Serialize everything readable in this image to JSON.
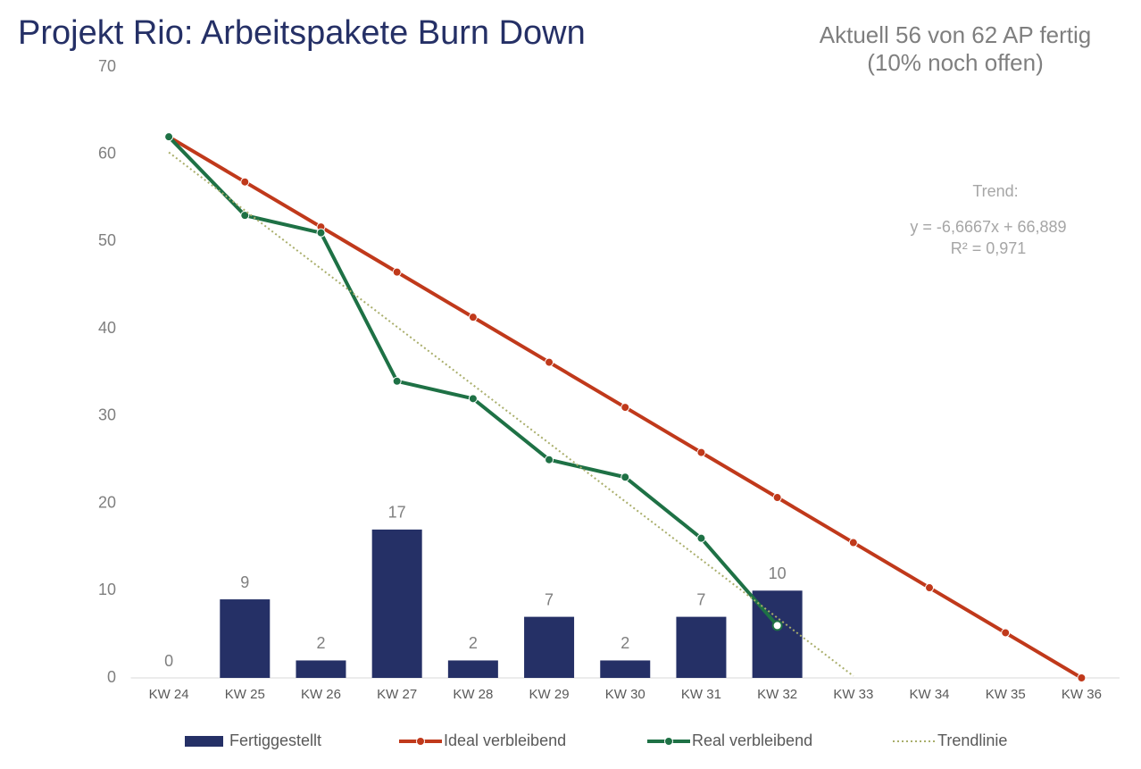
{
  "chart_data": {
    "type": "combo",
    "title": "Projekt Rio: Arbeitspakete Burn Down",
    "subtitle": [
      "Aktuell 56 von 62 AP fertig",
      "(10% noch offen)"
    ],
    "annotation": [
      "Trend:",
      "y = -6,6667x + 66,889",
      "R² = 0,971"
    ],
    "categories": [
      "KW 24",
      "KW 25",
      "KW 26",
      "KW 27",
      "KW 28",
      "KW 29",
      "KW 30",
      "KW 31",
      "KW 32",
      "KW 33",
      "KW 34",
      "KW 35",
      "KW 36"
    ],
    "ylim": [
      0,
      70
    ],
    "yticks": [
      0,
      10,
      20,
      30,
      40,
      50,
      60,
      70
    ],
    "legend": "bottom",
    "series": [
      {
        "name": "Fertiggestellt",
        "type": "bar",
        "color": "#253066",
        "values": [
          0,
          9,
          2,
          17,
          2,
          7,
          2,
          7,
          10,
          null,
          null,
          null,
          null
        ],
        "data_labels": true
      },
      {
        "name": "Ideal verbleibend",
        "type": "line",
        "color": "#c0391b",
        "markers": true,
        "linestyle": "solid",
        "values": [
          62,
          56.83,
          51.67,
          46.5,
          41.33,
          36.17,
          31,
          25.83,
          20.67,
          15.5,
          10.33,
          5.17,
          0
        ]
      },
      {
        "name": "Real verbleibend",
        "type": "line",
        "color": "#1e7145",
        "markers": true,
        "linestyle": "solid",
        "values": [
          62,
          53,
          51,
          34,
          32,
          25,
          23,
          16,
          6,
          null,
          null,
          null,
          null
        ]
      },
      {
        "name": "Trendlinie",
        "type": "line",
        "color": "#a9ae6b",
        "markers": false,
        "linestyle": "dotted",
        "values": [
          60.22,
          53.56,
          46.89,
          40.22,
          33.56,
          26.89,
          20.22,
          13.56,
          6.89,
          0.22,
          null,
          null,
          null
        ]
      }
    ]
  }
}
